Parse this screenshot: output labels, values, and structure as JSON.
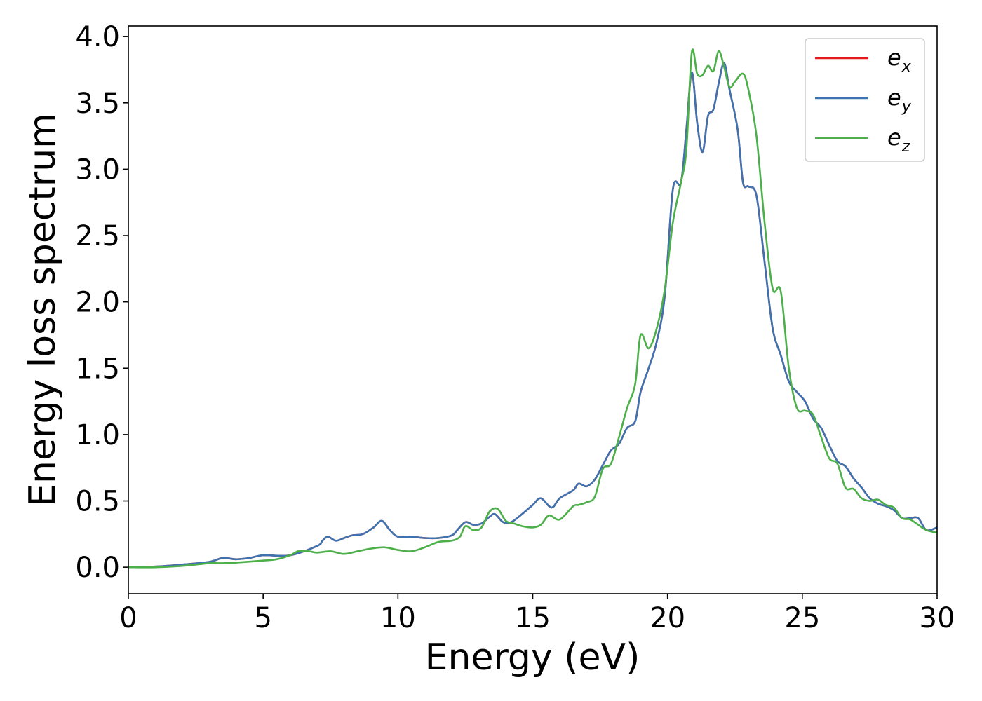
{
  "chart_data": {
    "type": "line",
    "xlabel": "Energy (eV)",
    "ylabel": "Energy loss spectrum",
    "xlim": [
      0,
      30
    ],
    "ylim": [
      -0.2,
      4.08
    ],
    "xticks": [
      0,
      5,
      10,
      15,
      20,
      25,
      30
    ],
    "xtick_labels": [
      "0",
      "5",
      "10",
      "15",
      "20",
      "25",
      "30"
    ],
    "yticks": [
      0.0,
      0.5,
      1.0,
      1.5,
      2.0,
      2.5,
      3.0,
      3.5,
      4.0
    ],
    "ytick_labels": [
      "0.0",
      "0.5",
      "1.0",
      "1.5",
      "2.0",
      "2.5",
      "3.0",
      "3.5",
      "4.0"
    ],
    "grid": false,
    "legend_position": "top-right",
    "series": [
      {
        "name": "e_x",
        "label_base": "e",
        "label_sub": "x",
        "color": "#e41a1c",
        "x": [
          0,
          1,
          2,
          3,
          3.5,
          4,
          4.5,
          5,
          6,
          7,
          7.2,
          7.4,
          7.7,
          8,
          8.3,
          8.7,
          9.1,
          9.4,
          9.7,
          10,
          10.5,
          11,
          11.5,
          12,
          12.2,
          12.5,
          12.8,
          13.1,
          13.4,
          13.6,
          13.9,
          14.2,
          14.6,
          15,
          15.3,
          15.7,
          16,
          16.5,
          16.7,
          17,
          17.3,
          17.6,
          17.9,
          18.2,
          18.5,
          18.8,
          19,
          19.3,
          19.6,
          19.9,
          20.2,
          20.5,
          20.7,
          20.9,
          21.1,
          21.3,
          21.5,
          21.7,
          21.9,
          22.1,
          22.3,
          22.6,
          22.8,
          23,
          23.3,
          23.6,
          23.9,
          24.2,
          24.5,
          24.8,
          25.1,
          25.4,
          25.7,
          26,
          26.3,
          26.6,
          26.9,
          27.2,
          27.5,
          27.8,
          28.1,
          28.4,
          28.7,
          29,
          29.3,
          29.6,
          30
        ],
        "values": [
          0,
          0.005,
          0.02,
          0.04,
          0.07,
          0.06,
          0.07,
          0.09,
          0.09,
          0.16,
          0.2,
          0.23,
          0.2,
          0.22,
          0.24,
          0.25,
          0.3,
          0.35,
          0.28,
          0.23,
          0.23,
          0.22,
          0.22,
          0.24,
          0.28,
          0.34,
          0.32,
          0.33,
          0.38,
          0.4,
          0.34,
          0.34,
          0.4,
          0.47,
          0.52,
          0.45,
          0.52,
          0.58,
          0.63,
          0.61,
          0.66,
          0.77,
          0.88,
          0.93,
          1.05,
          1.1,
          1.32,
          1.5,
          1.7,
          2.05,
          2.85,
          2.9,
          3.3,
          3.73,
          3.35,
          3.13,
          3.4,
          3.45,
          3.65,
          3.8,
          3.6,
          3.3,
          2.9,
          2.87,
          2.8,
          2.3,
          1.8,
          1.6,
          1.4,
          1.32,
          1.25,
          1.12,
          1.05,
          0.92,
          0.8,
          0.76,
          0.67,
          0.6,
          0.52,
          0.48,
          0.46,
          0.43,
          0.37,
          0.37,
          0.37,
          0.28,
          0.3
        ]
      },
      {
        "name": "e_y",
        "label_base": "e",
        "label_sub": "y",
        "color": "#3d73b0",
        "x": [
          0,
          1,
          2,
          3,
          3.5,
          4,
          4.5,
          5,
          6,
          7,
          7.2,
          7.4,
          7.7,
          8,
          8.3,
          8.7,
          9.1,
          9.4,
          9.7,
          10,
          10.5,
          11,
          11.5,
          12,
          12.2,
          12.5,
          12.8,
          13.1,
          13.4,
          13.6,
          13.9,
          14.2,
          14.6,
          15,
          15.3,
          15.7,
          16,
          16.5,
          16.7,
          17,
          17.3,
          17.6,
          17.9,
          18.2,
          18.5,
          18.8,
          19,
          19.3,
          19.6,
          19.9,
          20.2,
          20.5,
          20.7,
          20.9,
          21.1,
          21.3,
          21.5,
          21.7,
          21.9,
          22.1,
          22.3,
          22.6,
          22.8,
          23,
          23.3,
          23.6,
          23.9,
          24.2,
          24.5,
          24.8,
          25.1,
          25.4,
          25.7,
          26,
          26.3,
          26.6,
          26.9,
          27.2,
          27.5,
          27.8,
          28.1,
          28.4,
          28.7,
          29,
          29.3,
          29.6,
          30
        ],
        "values": [
          0,
          0.005,
          0.02,
          0.04,
          0.07,
          0.06,
          0.07,
          0.09,
          0.09,
          0.16,
          0.2,
          0.23,
          0.2,
          0.22,
          0.24,
          0.25,
          0.3,
          0.35,
          0.28,
          0.23,
          0.23,
          0.22,
          0.22,
          0.24,
          0.28,
          0.34,
          0.32,
          0.33,
          0.38,
          0.4,
          0.34,
          0.34,
          0.4,
          0.47,
          0.52,
          0.45,
          0.52,
          0.58,
          0.63,
          0.61,
          0.66,
          0.77,
          0.88,
          0.93,
          1.05,
          1.1,
          1.32,
          1.5,
          1.7,
          2.05,
          2.85,
          2.9,
          3.3,
          3.73,
          3.35,
          3.13,
          3.4,
          3.45,
          3.65,
          3.8,
          3.6,
          3.3,
          2.9,
          2.87,
          2.8,
          2.3,
          1.8,
          1.6,
          1.4,
          1.32,
          1.25,
          1.12,
          1.05,
          0.92,
          0.8,
          0.76,
          0.67,
          0.6,
          0.52,
          0.48,
          0.46,
          0.43,
          0.37,
          0.37,
          0.37,
          0.28,
          0.3
        ]
      },
      {
        "name": "e_z",
        "label_base": "e",
        "label_sub": "z",
        "color": "#4daf4a",
        "x": [
          0,
          1,
          2,
          3,
          3.5,
          4,
          5,
          5.5,
          6,
          6.3,
          6.7,
          7,
          7.5,
          8,
          8.5,
          9,
          9.5,
          10,
          10.5,
          11,
          11.5,
          12,
          12.3,
          12.5,
          12.8,
          13.1,
          13.4,
          13.7,
          14,
          14.3,
          14.6,
          15,
          15.3,
          15.6,
          16,
          16.5,
          16.7,
          17,
          17.3,
          17.6,
          17.9,
          18.2,
          18.5,
          18.8,
          19,
          19.3,
          19.6,
          19.9,
          20.2,
          20.5,
          20.7,
          20.9,
          21.1,
          21.3,
          21.5,
          21.7,
          21.9,
          22.1,
          22.3,
          22.5,
          22.8,
          23,
          23.3,
          23.6,
          23.9,
          24.2,
          24.5,
          24.8,
          25.1,
          25.4,
          25.7,
          26,
          26.3,
          26.6,
          26.9,
          27.2,
          27.5,
          27.8,
          28.1,
          28.4,
          28.7,
          29,
          29.3,
          29.6,
          30
        ],
        "values": [
          0,
          0,
          0.01,
          0.03,
          0.03,
          0.035,
          0.05,
          0.06,
          0.09,
          0.12,
          0.12,
          0.11,
          0.12,
          0.1,
          0.12,
          0.14,
          0.15,
          0.13,
          0.12,
          0.15,
          0.19,
          0.2,
          0.23,
          0.31,
          0.28,
          0.3,
          0.42,
          0.44,
          0.35,
          0.33,
          0.31,
          0.3,
          0.32,
          0.39,
          0.36,
          0.46,
          0.47,
          0.49,
          0.53,
          0.74,
          0.78,
          0.98,
          1.2,
          1.38,
          1.75,
          1.65,
          1.8,
          2.1,
          2.6,
          2.9,
          3.15,
          3.88,
          3.72,
          3.71,
          3.78,
          3.74,
          3.89,
          3.77,
          3.62,
          3.66,
          3.72,
          3.6,
          3.25,
          2.6,
          2.1,
          2.08,
          1.5,
          1.2,
          1.18,
          1.15,
          0.98,
          0.82,
          0.78,
          0.6,
          0.59,
          0.52,
          0.5,
          0.51,
          0.47,
          0.45,
          0.37,
          0.36,
          0.32,
          0.28,
          0.26
        ]
      }
    ]
  }
}
